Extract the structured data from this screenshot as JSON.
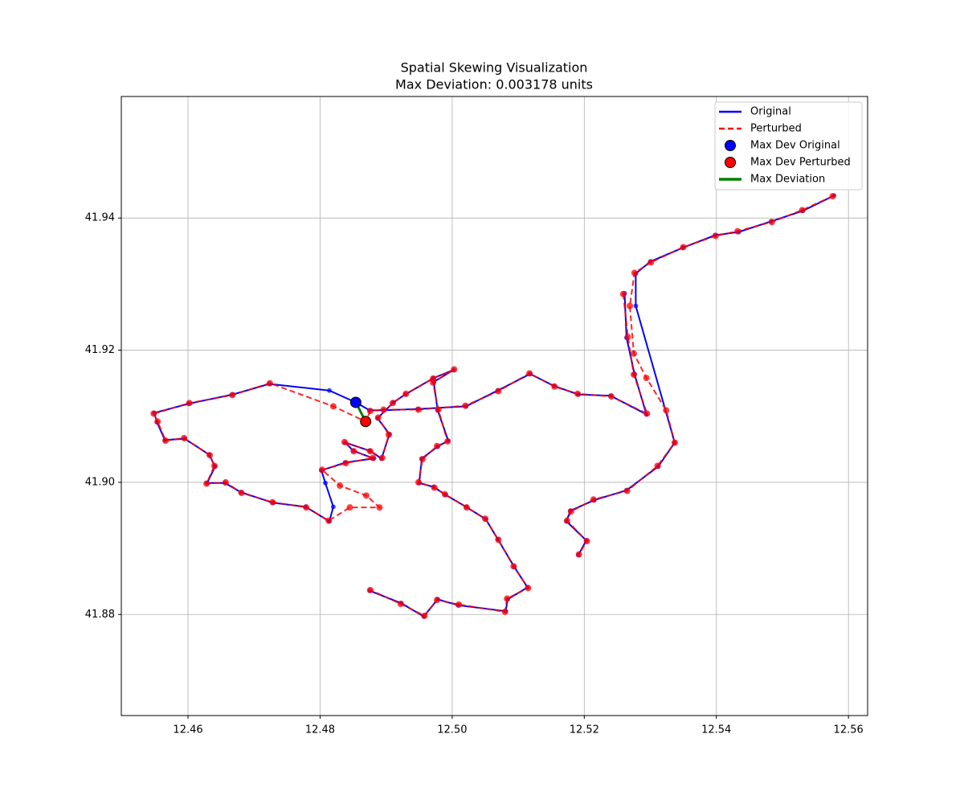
{
  "chart_data": {
    "type": "line",
    "title": "Spatial Skewing Visualization",
    "subtitle": "Max Deviation: 0.003178 units",
    "xlim": [
      12.4499,
      12.5629
    ],
    "ylim": [
      41.8647,
      41.9584
    ],
    "xticks": [
      12.46,
      12.48,
      {
        "value": 12.5,
        "label": "12.50"
      },
      12.52,
      12.54,
      12.56
    ],
    "yticks": [
      41.88,
      {
        "value": 41.9,
        "label": "41.90"
      },
      41.92,
      41.94
    ],
    "grid": true,
    "legend": "upper right",
    "series": [
      {
        "name": "Original",
        "color": "#0000ff",
        "style": "solid",
        "markers": true,
        "x": [
          12.5578,
          12.5531,
          12.5483,
          12.5434,
          12.5398,
          12.5349,
          12.53,
          12.5278,
          12.5278,
          12.5337,
          12.5312,
          12.5264,
          12.5215,
          12.5179,
          12.5173,
          12.5203,
          12.5191,
          null,
          12.5261,
          12.5264,
          12.5276,
          12.5294,
          12.524,
          12.5191,
          12.5154,
          12.5118,
          12.5069,
          12.5021,
          12.4948,
          12.4897,
          12.4875,
          12.4854,
          12.4814,
          12.4723,
          12.4668,
          12.4601,
          12.4549,
          12.4553,
          12.4565,
          12.4595,
          12.4632,
          12.4641,
          12.4629,
          12.4656,
          12.468,
          12.4729,
          12.4778,
          12.4814,
          12.482,
          12.4808,
          12.4802,
          12.4838,
          12.4881,
          12.485,
          12.4838,
          12.4875,
          12.4893,
          12.4905,
          12.4887,
          12.4911,
          12.4929,
          12.4972,
          12.5002,
          12.4972,
          12.4978,
          12.4994,
          12.4978,
          12.4954,
          12.495,
          12.4972,
          12.499,
          12.5021,
          12.5051,
          12.5069,
          12.5094,
          12.5114,
          12.5084,
          12.5081,
          12.5009,
          12.4978,
          12.4957,
          12.4923,
          12.4875
        ],
        "values": [
          41.9434,
          41.9411,
          41.9395,
          41.9379,
          41.9374,
          41.9355,
          41.9334,
          41.9316,
          41.9267,
          41.906,
          41.9024,
          41.8988,
          41.8973,
          41.8957,
          41.8941,
          41.8912,
          41.889,
          null,
          41.9286,
          41.9219,
          41.9164,
          41.9103,
          41.9131,
          41.9133,
          41.9146,
          41.9164,
          41.9139,
          41.9115,
          41.9111,
          41.9109,
          41.9109,
          41.9121,
          41.9139,
          41.9149,
          41.9133,
          41.9119,
          41.9105,
          41.9091,
          41.9064,
          41.9066,
          41.9042,
          41.9024,
          41.8999,
          41.8999,
          41.8985,
          41.8969,
          41.8963,
          41.8941,
          41.8963,
          41.8999,
          41.9018,
          41.903,
          41.9036,
          41.9048,
          41.906,
          41.9048,
          41.9036,
          41.9073,
          41.9097,
          41.9121,
          41.9133,
          41.9158,
          41.917,
          41.9152,
          41.9109,
          41.9063,
          41.9054,
          41.9036,
          41.8999,
          41.8993,
          41.8981,
          41.8963,
          41.8944,
          41.8914,
          41.8872,
          41.8841,
          41.8823,
          41.8805,
          41.8814,
          41.8823,
          41.8797,
          41.8817,
          41.8836
        ]
      },
      {
        "name": "Perturbed",
        "color": "#ff0000",
        "style": "dashed",
        "markers": true,
        "x": [
          12.5576,
          12.553,
          12.5484,
          12.5432,
          12.5399,
          12.535,
          12.5301,
          12.5276,
          12.5269,
          12.5275,
          12.5294,
          12.5324,
          12.5337,
          12.5311,
          12.5265,
          12.5214,
          12.518,
          12.5174,
          12.5204,
          12.5192,
          null,
          12.5259,
          12.5266,
          12.5275,
          12.5295,
          12.5241,
          12.519,
          12.5155,
          12.5117,
          12.507,
          12.502,
          12.4949,
          12.4896,
          12.4876,
          12.4869,
          12.482,
          12.4724,
          12.4667,
          12.4602,
          12.4548,
          12.4554,
          12.4566,
          12.4594,
          12.4633,
          12.464,
          12.4628,
          12.4657,
          12.4681,
          12.4728,
          12.4779,
          12.4813,
          12.4845,
          12.489,
          12.487,
          12.483,
          12.4803,
          12.4839,
          12.488,
          12.4851,
          12.4837,
          12.4876,
          12.4894,
          12.4904,
          12.4888,
          12.491,
          12.493,
          12.4971,
          12.5003,
          12.4971,
          12.4979,
          12.4993,
          12.4977,
          12.4955,
          12.4949,
          12.4973,
          12.4989,
          12.5022,
          12.505,
          12.507,
          12.5093,
          12.5115,
          12.5083,
          12.508,
          12.501,
          12.4977,
          12.4958,
          12.4922,
          12.4876
        ],
        "values": [
          41.9433,
          41.9412,
          41.9394,
          41.938,
          41.9373,
          41.9356,
          41.9333,
          41.9317,
          41.9267,
          41.9195,
          41.9158,
          41.9109,
          41.906,
          41.9025,
          41.8987,
          41.8974,
          41.8956,
          41.8942,
          41.8911,
          41.8891,
          null,
          41.9285,
          41.922,
          41.9163,
          41.9104,
          41.913,
          41.9134,
          41.9145,
          41.9165,
          41.9138,
          41.9116,
          41.911,
          41.911,
          41.9108,
          41.9092,
          41.9115,
          41.915,
          41.9132,
          41.912,
          41.9104,
          41.9092,
          41.9063,
          41.9067,
          41.9041,
          41.9025,
          41.8998,
          41.9,
          41.8984,
          41.897,
          41.8962,
          41.8942,
          41.8962,
          41.8962,
          41.898,
          41.8995,
          41.9019,
          41.9029,
          41.9037,
          41.9047,
          41.9061,
          41.9047,
          41.9037,
          41.9072,
          41.9098,
          41.912,
          41.9134,
          41.9157,
          41.9171,
          41.9151,
          41.911,
          41.9062,
          41.9055,
          41.9035,
          41.9,
          41.8992,
          41.8982,
          41.8962,
          41.8945,
          41.8913,
          41.8873,
          41.884,
          41.8824,
          41.8804,
          41.8815,
          41.8822,
          41.8798,
          41.8816,
          41.8837
        ]
      },
      {
        "name": "Max Dev Original",
        "color": "#0000ff",
        "style": "point",
        "x": [
          12.4854
        ],
        "values": [
          41.9121
        ]
      },
      {
        "name": "Max Dev Perturbed",
        "color": "#ff0000",
        "style": "point",
        "x": [
          12.4869
        ],
        "values": [
          41.9092
        ]
      },
      {
        "name": "Max Deviation",
        "color": "#008000",
        "style": "solid",
        "x": [
          12.4854,
          12.4869
        ],
        "values": [
          41.9121,
          41.9092
        ]
      }
    ]
  }
}
